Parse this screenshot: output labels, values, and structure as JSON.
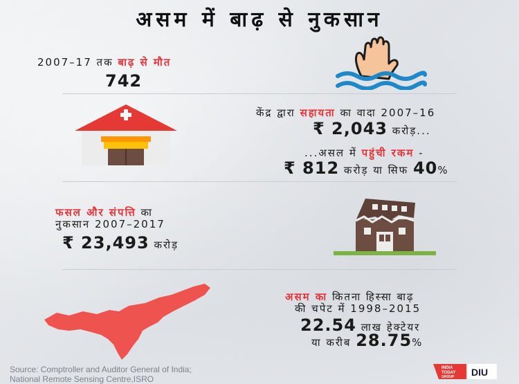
{
  "title": "असम में बाढ़ से नुकसान",
  "section1": {
    "line1_prefix": "2007–17 तक ",
    "line1_highlight": "बाढ़ से मौत",
    "value": "742"
  },
  "section2": {
    "line1_prefix": "केंद्र द्वारा ",
    "line1_highlight": "सहायता",
    "line1_suffix": " का वादा 2007–16",
    "promised_value": "₹ 2,043",
    "promised_unit": " करोड़...",
    "line3_prefix": "...असल में ",
    "line3_highlight": "पहुंची रकम",
    "line3_suffix": " -",
    "received_value": "₹ 812",
    "received_mid": " करोड़ या सिफ ",
    "received_percent": "40",
    "percent_sign": "%"
  },
  "section3": {
    "line1_highlight": "फसल और संपत्ति",
    "line1_suffix": " का",
    "line2": "नुकसान 2007–2017",
    "value": "₹ 23,493",
    "unit": " करोड़"
  },
  "section4": {
    "line1_highlight": "असम का",
    "line1_suffix": " कितना हिस्सा बाढ़",
    "line2": "की चपेट में 1998–2015",
    "area_value": "22.54",
    "area_unit": " लाख हेक्टेयर",
    "percent_prefix": "या करीब ",
    "percent_value": "28.75",
    "percent_sign": "%"
  },
  "source": {
    "line1": "Source: Comptroller and Auditor General of India;",
    "line2": "National Remote Sensing Centre,ISRO"
  },
  "logo": {
    "line1": "INDIA",
    "line2": "TODAY",
    "line3": "GROUP",
    "diu": "DIU"
  },
  "colors": {
    "accent_red": "#e8343a",
    "water_blue": "#1e88c8",
    "hand_skin": "#f5c49a",
    "roof_red": "#e53935",
    "building_brown": "#6d4c41",
    "ground_green": "#7cb342",
    "map_red": "#ef5350"
  },
  "icons": [
    "drowning-hand-icon",
    "hospital-icon",
    "collapsed-building-icon",
    "assam-map-icon"
  ]
}
